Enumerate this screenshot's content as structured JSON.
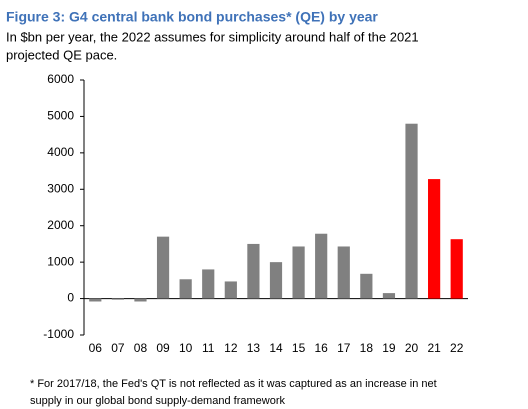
{
  "chart_data": {
    "type": "bar",
    "title": "Figure 3: G4 central bank bond purchases* (QE) by year",
    "subtitle": [
      "In $bn per year, the 2022 assumes for simplicity around half of the 2021",
      "projected QE pace."
    ],
    "categories": [
      "06",
      "07",
      "08",
      "09",
      "10",
      "11",
      "12",
      "13",
      "14",
      "15",
      "16",
      "17",
      "18",
      "19",
      "20",
      "21",
      "22"
    ],
    "values": [
      -80,
      -30,
      -80,
      1700,
      530,
      800,
      470,
      1500,
      1000,
      1430,
      1780,
      1430,
      680,
      150,
      4800,
      3280,
      1630
    ],
    "colors": [
      "#808080",
      "#808080",
      "#808080",
      "#808080",
      "#808080",
      "#808080",
      "#808080",
      "#808080",
      "#808080",
      "#808080",
      "#808080",
      "#808080",
      "#808080",
      "#808080",
      "#808080",
      "#ff0000",
      "#ff0000"
    ],
    "ylim": [
      -1000,
      6000
    ],
    "yticks": [
      -1000,
      0,
      1000,
      2000,
      3000,
      4000,
      5000,
      6000
    ],
    "grid": false,
    "footnote": [
      "* For 2017/18, the Fed's QT is not reflected as it was captured as an increase in net",
      "supply in our global bond supply-demand framework"
    ]
  }
}
